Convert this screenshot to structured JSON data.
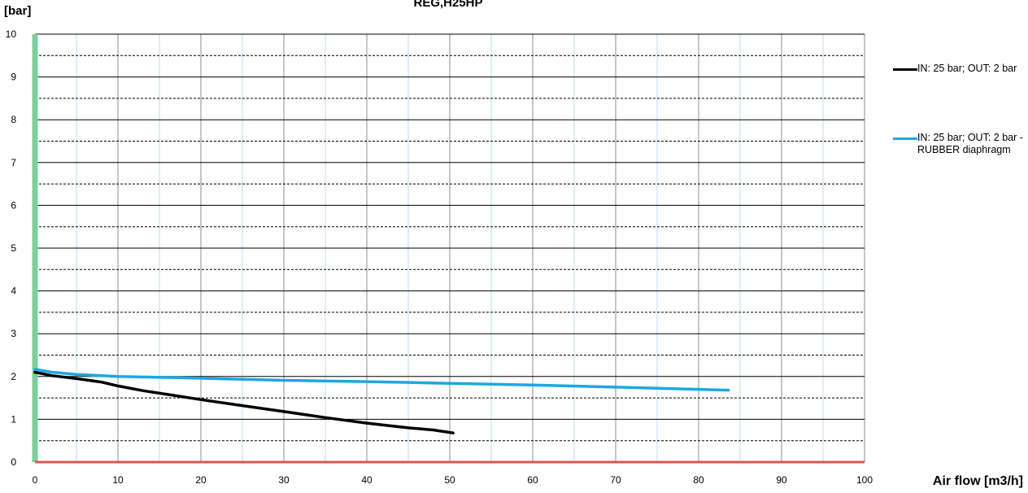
{
  "chart_data": {
    "type": "line",
    "title": "REG,H25HP",
    "xlabel": "Air flow [m3/h]",
    "ylabel": "[bar]",
    "xlim": [
      0,
      100
    ],
    "ylim": [
      0,
      10
    ],
    "x_ticks": [
      "0",
      "10",
      "20",
      "30",
      "40",
      "50",
      "60",
      "70",
      "80",
      "90",
      "100"
    ],
    "y_ticks": [
      "0",
      "1",
      "2",
      "3",
      "4",
      "5",
      "6",
      "7",
      "8",
      "9",
      "10"
    ],
    "grid": true,
    "legend_position": "right",
    "series": [
      {
        "name": "IN: 25 bar; OUT: 2 bar",
        "color": "#000000",
        "x": [
          0,
          2,
          5,
          8,
          10,
          13,
          16,
          20,
          25,
          30,
          35,
          40,
          45,
          48,
          50.4
        ],
        "y": [
          2.1,
          2.02,
          1.95,
          1.87,
          1.78,
          1.67,
          1.58,
          1.46,
          1.32,
          1.18,
          1.04,
          0.91,
          0.8,
          0.75,
          0.68
        ]
      },
      {
        "name": "IN: 25 bar; OUT: 2 bar - RUBBER diaphragm",
        "color": "#1ea7e1",
        "x": [
          0,
          2,
          5,
          10,
          20,
          30,
          40,
          50,
          60,
          70,
          80,
          83.6
        ],
        "y": [
          2.17,
          2.1,
          2.05,
          2.0,
          1.96,
          1.91,
          1.88,
          1.84,
          1.8,
          1.75,
          1.7,
          1.68
        ]
      }
    ]
  }
}
